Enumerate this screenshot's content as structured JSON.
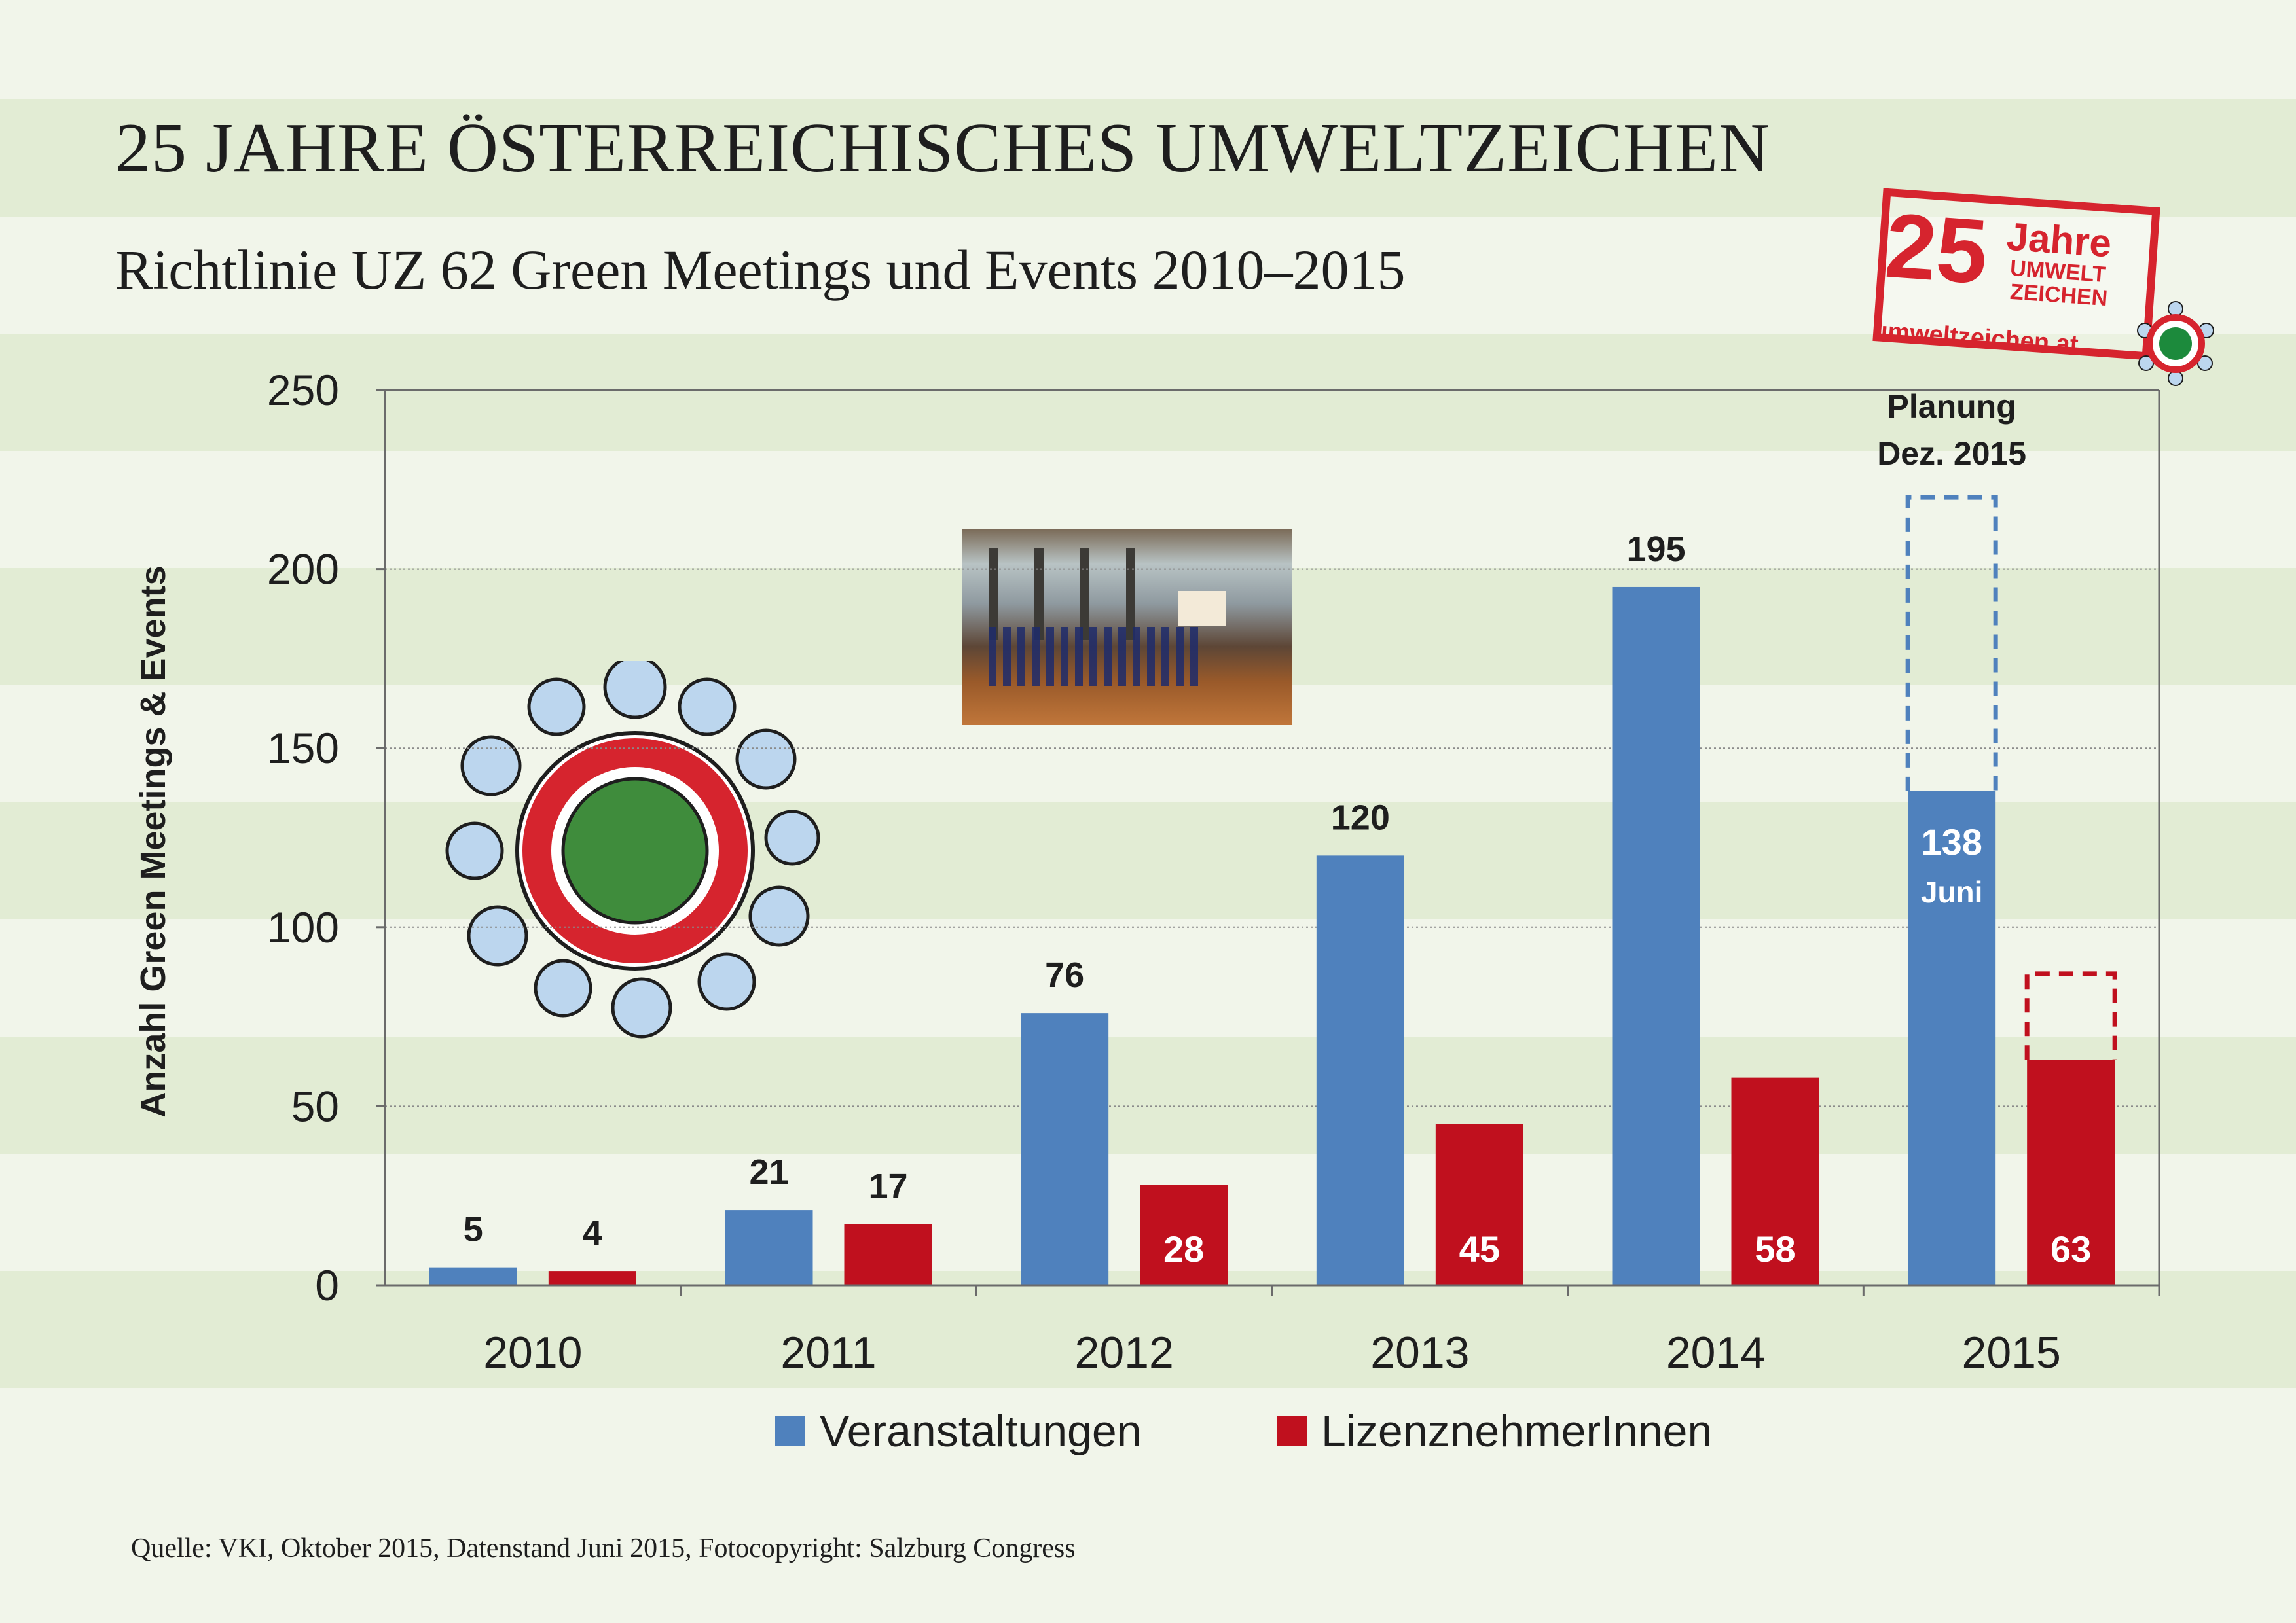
{
  "header": {
    "title": "25 JAHRE ÖSTERREICHISCHES UMWELTZEICHEN",
    "subtitle": "Richtlinie UZ 62 Green Meetings und Events 2010–2015"
  },
  "badge": {
    "number": "25",
    "jahre": "Jahre",
    "line1": "UMWELT",
    "line2": "ZEICHEN",
    "url": "umweltzeichen.at"
  },
  "source": "Quelle: VKI, Oktober 2015, Datenstand Juni 2015, Fotocopyright: Salzburg Congress",
  "colors": {
    "veranstaltungen": "#4f81bd",
    "lizenznehmer": "#c0101e",
    "band": "#e2ecd4",
    "background": "#f1f5ea"
  },
  "chart_data": {
    "type": "bar",
    "categories": [
      "2010",
      "2011",
      "2012",
      "2013",
      "2014",
      "2015"
    ],
    "series": [
      {
        "name": "Veranstaltungen",
        "values": [
          5,
          21,
          76,
          120,
          195,
          138
        ]
      },
      {
        "name": "LizenznehmerInnen",
        "values": [
          4,
          17,
          28,
          45,
          58,
          63
        ]
      }
    ],
    "ylabel": "Anzahl Green Meetings & Events",
    "xlabel": "",
    "ylim": [
      0,
      250
    ],
    "yticks": [
      0,
      50,
      100,
      150,
      200,
      250
    ],
    "grid": true,
    "legend": "bottom",
    "planned": [
      {
        "series": "Veranstaltungen",
        "category": "2015",
        "value": 220,
        "label_line1": "Planung",
        "label_line2": "Dez. 2015"
      },
      {
        "series": "LizenznehmerInnen",
        "category": "2015",
        "value": 87
      }
    ],
    "annotations": [
      {
        "series": "Veranstaltungen",
        "category": "2015",
        "note": "Juni"
      }
    ]
  }
}
